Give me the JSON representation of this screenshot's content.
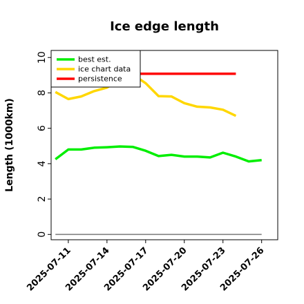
{
  "chart_data": {
    "type": "line",
    "title": "Ice edge length",
    "xlabel": "",
    "ylabel": "Length (1000km)",
    "ylim": [
      -0.3,
      10.4
    ],
    "xlim": [
      "2025-07-09T16:00",
      "2025-07-27T06:00"
    ],
    "yticks": [
      0,
      2,
      4,
      6,
      8,
      10
    ],
    "xticks": [
      "2025-07-11",
      "2025-07-14",
      "2025-07-17",
      "2025-07-20",
      "2025-07-23",
      "2025-07-26"
    ],
    "legend_position": "top-left",
    "series": [
      {
        "name": "best est.",
        "color": "#00ee00",
        "x": [
          "2025-07-10",
          "2025-07-11",
          "2025-07-12",
          "2025-07-13",
          "2025-07-14",
          "2025-07-15",
          "2025-07-16",
          "2025-07-17",
          "2025-07-18",
          "2025-07-19",
          "2025-07-20",
          "2025-07-21",
          "2025-07-22",
          "2025-07-23",
          "2025-07-24",
          "2025-07-25",
          "2025-07-26"
        ],
        "values": [
          4.25,
          4.8,
          4.8,
          4.9,
          4.93,
          4.97,
          4.95,
          4.73,
          4.43,
          4.5,
          4.4,
          4.4,
          4.35,
          4.62,
          4.4,
          4.13,
          4.2
        ]
      },
      {
        "name": "ice chart data",
        "color": "#ffd700",
        "x": [
          "2025-07-10",
          "2025-07-11",
          "2025-07-12",
          "2025-07-13",
          "2025-07-14",
          "2025-07-15",
          "2025-07-16",
          "2025-07-17",
          "2025-07-18",
          "2025-07-19",
          "2025-07-20",
          "2025-07-21",
          "2025-07-22",
          "2025-07-23",
          "2025-07-24"
        ],
        "values": [
          8.05,
          7.65,
          7.8,
          8.1,
          8.3,
          8.75,
          9.05,
          8.55,
          7.82,
          7.8,
          7.42,
          7.22,
          7.18,
          7.05,
          6.7
        ]
      },
      {
        "name": "persistence",
        "color": "#ff0000",
        "x": [
          "2025-07-15",
          "2025-07-24"
        ],
        "values": [
          9.08,
          9.08
        ]
      },
      {
        "name": "",
        "color": "#808080",
        "x": [
          "2025-07-10",
          "2025-07-26"
        ],
        "values": [
          0,
          0
        ]
      }
    ]
  }
}
